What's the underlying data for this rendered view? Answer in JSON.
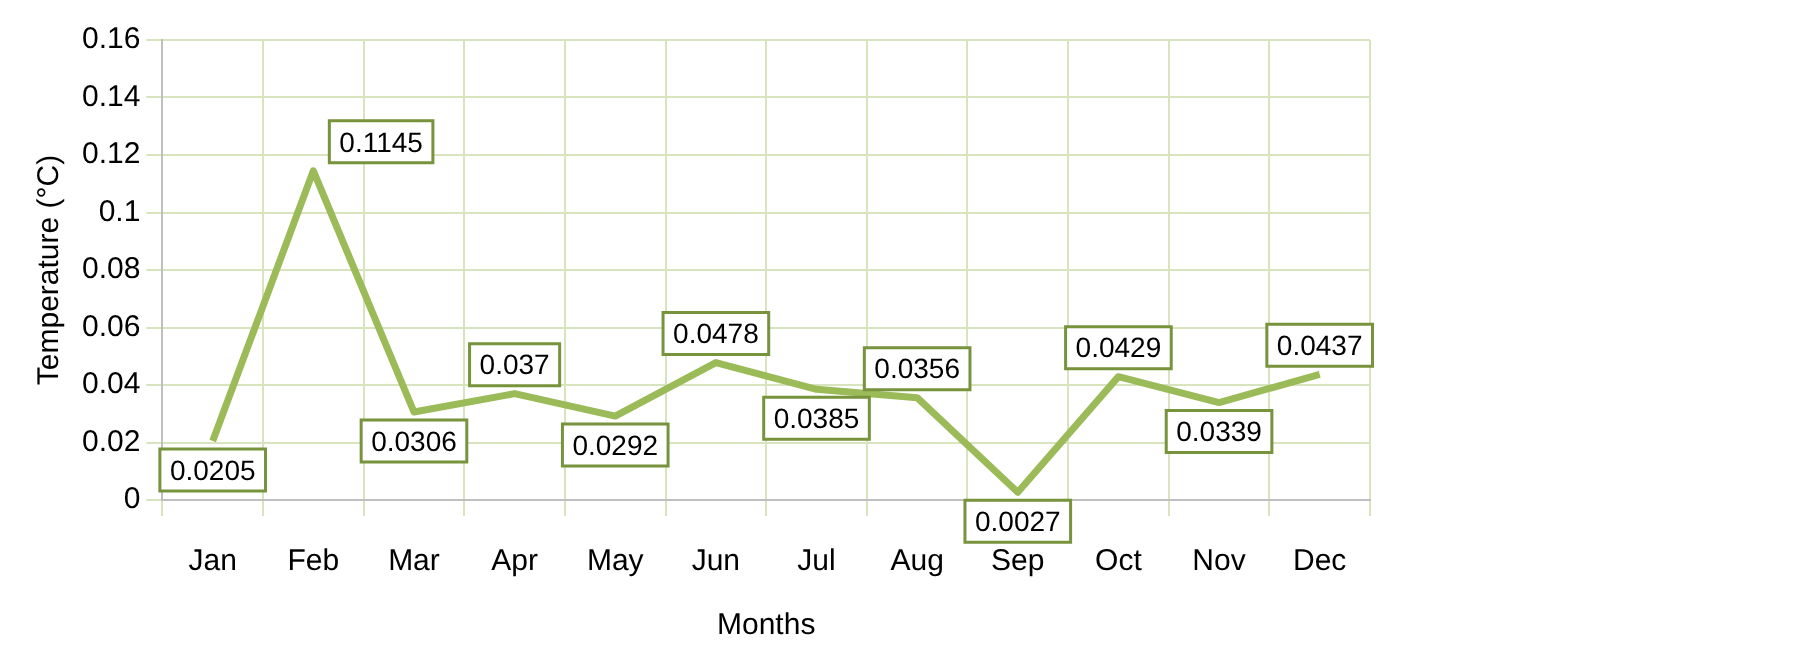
{
  "chart_data": {
    "type": "line",
    "xlabel": "Months",
    "ylabel": "Temperature (°C)",
    "categories": [
      "Jan",
      "Feb",
      "Mar",
      "Apr",
      "May",
      "Jun",
      "Jul",
      "Aug",
      "Sep",
      "Oct",
      "Nov",
      "Dec"
    ],
    "series": [
      {
        "color": "#9bbb59",
        "values": [
          0.0205,
          0.1145,
          0.0306,
          0.037,
          0.0292,
          0.0478,
          0.0385,
          0.0356,
          0.0027,
          0.0429,
          0.0339,
          0.0437
        ]
      }
    ],
    "ylim": [
      0,
      0.16
    ],
    "yticks": [
      0,
      0.02,
      0.04,
      0.06,
      0.08,
      0.1,
      0.12,
      0.14,
      0.16
    ],
    "grid": true,
    "data_labels": true,
    "marker": "none",
    "line_style": "solid",
    "legend": false
  }
}
